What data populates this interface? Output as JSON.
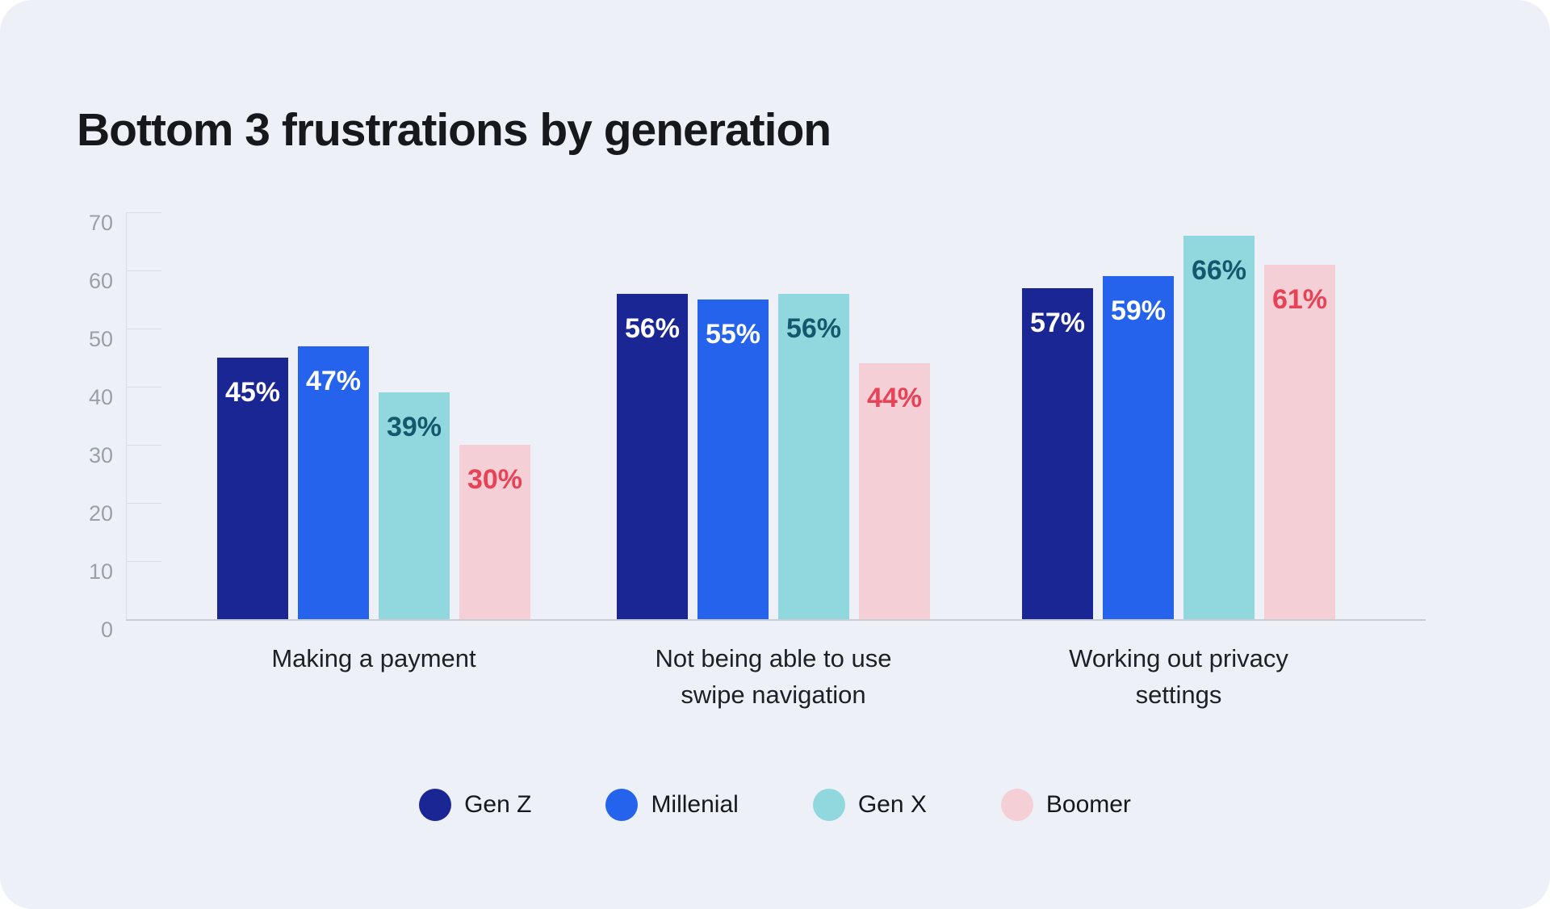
{
  "page": {
    "background": "#ffffff",
    "card_background": "#edf1f7"
  },
  "chart_data": {
    "type": "bar",
    "title": "Bottom 3 frustrations by generation",
    "categories": [
      "Making a payment",
      "Not being able to use swipe navigation",
      "Working out privacy settings"
    ],
    "category_lines": [
      [
        "Making a payment"
      ],
      [
        "Not being able to use",
        "swipe navigation"
      ],
      [
        "Working out privacy",
        "settings"
      ]
    ],
    "series": [
      {
        "name": "Gen Z",
        "color": "#1b2695",
        "label_color": "#ffffff",
        "values": [
          45,
          56,
          57
        ]
      },
      {
        "name": "Millenial",
        "color": "#2563ec",
        "label_color": "#ffffff",
        "values": [
          47,
          55,
          59
        ]
      },
      {
        "name": "Gen X",
        "color": "#90d8de",
        "label_color": "#15586d",
        "values": [
          39,
          56,
          66
        ]
      },
      {
        "name": "Boomer",
        "color": "#f4cfd6",
        "label_color": "#e84257",
        "values": [
          30,
          44,
          61
        ]
      }
    ],
    "value_suffix": "%",
    "xlabel": "",
    "ylabel": "",
    "ylim": [
      0,
      70
    ],
    "yticks": [
      0,
      10,
      20,
      30,
      40,
      50,
      60,
      70
    ],
    "grid": false,
    "legend_position": "bottom",
    "colors": {
      "axis_text": "#99a0aa",
      "tick_line": "#d8dce3",
      "baseline": "#c9ced5",
      "title_text": "#17181c",
      "category_text": "#1e2023",
      "legend_text": "#17181c"
    }
  }
}
